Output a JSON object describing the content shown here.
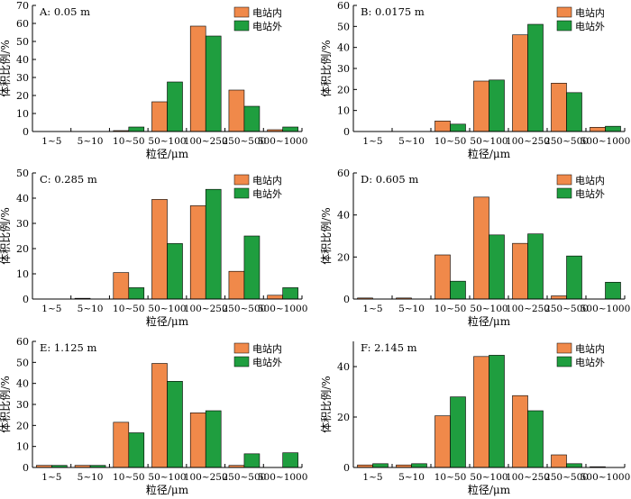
{
  "legend": {
    "inside_label": "电站内",
    "outside_label": "电站外",
    "inside_color": "#f0894a",
    "outside_color": "#1f9e3f"
  },
  "chart_data": [
    {
      "type": "bar",
      "panel_label": "A: 0.05 m",
      "xlabel": "粒径/μm",
      "ylabel": "体积比例/%",
      "categories": [
        "1~5",
        "5~10",
        "10~50",
        "50~100",
        "100~250",
        "250~500",
        "500~1000"
      ],
      "ylim": [
        0,
        70
      ],
      "yticks": [
        0,
        10,
        20,
        30,
        40,
        50,
        60,
        70
      ],
      "legend_position": "top-right",
      "series": [
        {
          "name": "电站内",
          "values": [
            0,
            0,
            0.5,
            16.5,
            58.5,
            23,
            1
          ]
        },
        {
          "name": "电站外",
          "values": [
            0,
            0,
            2.5,
            27.5,
            53,
            14,
            2.5
          ]
        }
      ]
    },
    {
      "type": "bar",
      "panel_label": "B: 0.0175 m",
      "xlabel": "粒径/μm",
      "ylabel": "体积比例/%",
      "categories": [
        "1~5",
        "5~10",
        "10~50",
        "50~100",
        "100~250",
        "250~500",
        "500~1000"
      ],
      "ylim": [
        0,
        60
      ],
      "yticks": [
        0,
        10,
        20,
        30,
        40,
        50,
        60
      ],
      "legend_position": "top-right",
      "series": [
        {
          "name": "电站内",
          "values": [
            0,
            0,
            5,
            24,
            46,
            23,
            2
          ]
        },
        {
          "name": "电站外",
          "values": [
            0,
            0,
            3.5,
            24.5,
            51,
            18.5,
            2.5
          ]
        }
      ]
    },
    {
      "type": "bar",
      "panel_label": "C: 0.285 m",
      "xlabel": "粒径/μm",
      "ylabel": "体积比例/%",
      "categories": [
        "1~5",
        "5~10",
        "10~50",
        "50~100",
        "100~250",
        "250~500",
        "500~1000"
      ],
      "ylim": [
        0,
        50
      ],
      "yticks": [
        0,
        10,
        20,
        30,
        40,
        50
      ],
      "legend_position": "top-right",
      "series": [
        {
          "name": "电站内",
          "values": [
            0,
            0.3,
            10.5,
            39.5,
            37,
            11,
            1.5
          ]
        },
        {
          "name": "电站外",
          "values": [
            0,
            0,
            4.5,
            22,
            43.5,
            25,
            4.5
          ]
        }
      ]
    },
    {
      "type": "bar",
      "panel_label": "D: 0.605 m",
      "xlabel": "粒径/μm",
      "ylabel": "体积比例/%",
      "categories": [
        "1~5",
        "5~10",
        "10~50",
        "50~100",
        "100~250",
        "250~500",
        "500~1000"
      ],
      "ylim": [
        0,
        60
      ],
      "yticks": [
        0,
        20,
        40,
        60
      ],
      "legend_position": "top-right",
      "series": [
        {
          "name": "电站内",
          "values": [
            0.5,
            0.5,
            21,
            48.5,
            26.5,
            1.5,
            0
          ]
        },
        {
          "name": "电站外",
          "values": [
            0,
            0,
            8.5,
            30.5,
            31,
            20.5,
            8
          ]
        }
      ]
    },
    {
      "type": "bar",
      "panel_label": "E: 1.125 m",
      "xlabel": "粒径/μm",
      "ylabel": "体积比例/%",
      "categories": [
        "1~5",
        "5~10",
        "10~50",
        "50~100",
        "100~250",
        "250~500",
        "500~1000"
      ],
      "ylim": [
        0,
        60
      ],
      "yticks": [
        0,
        10,
        20,
        30,
        40,
        50,
        60
      ],
      "legend_position": "top-right",
      "series": [
        {
          "name": "电站内",
          "values": [
            1,
            1,
            21.5,
            49.5,
            26,
            1,
            0
          ]
        },
        {
          "name": "电站外",
          "values": [
            1,
            1,
            16.5,
            41,
            27,
            6.5,
            7
          ]
        }
      ]
    },
    {
      "type": "bar",
      "panel_label": "F: 2.145 m",
      "xlabel": "粒径/μm",
      "ylabel": "体积比例/%",
      "categories": [
        "1~5",
        "5~10",
        "10~50",
        "50~100",
        "100~250",
        "250~500",
        "500~1000"
      ],
      "ylim": [
        0,
        50
      ],
      "yticks": [
        0,
        20,
        40
      ],
      "legend_position": "top-right",
      "series": [
        {
          "name": "电站内",
          "values": [
            1,
            1,
            20.5,
            44,
            28.5,
            5,
            0.3
          ]
        },
        {
          "name": "电站外",
          "values": [
            1.5,
            1.5,
            28,
            44.5,
            22.5,
            1.5,
            0
          ]
        }
      ]
    }
  ]
}
